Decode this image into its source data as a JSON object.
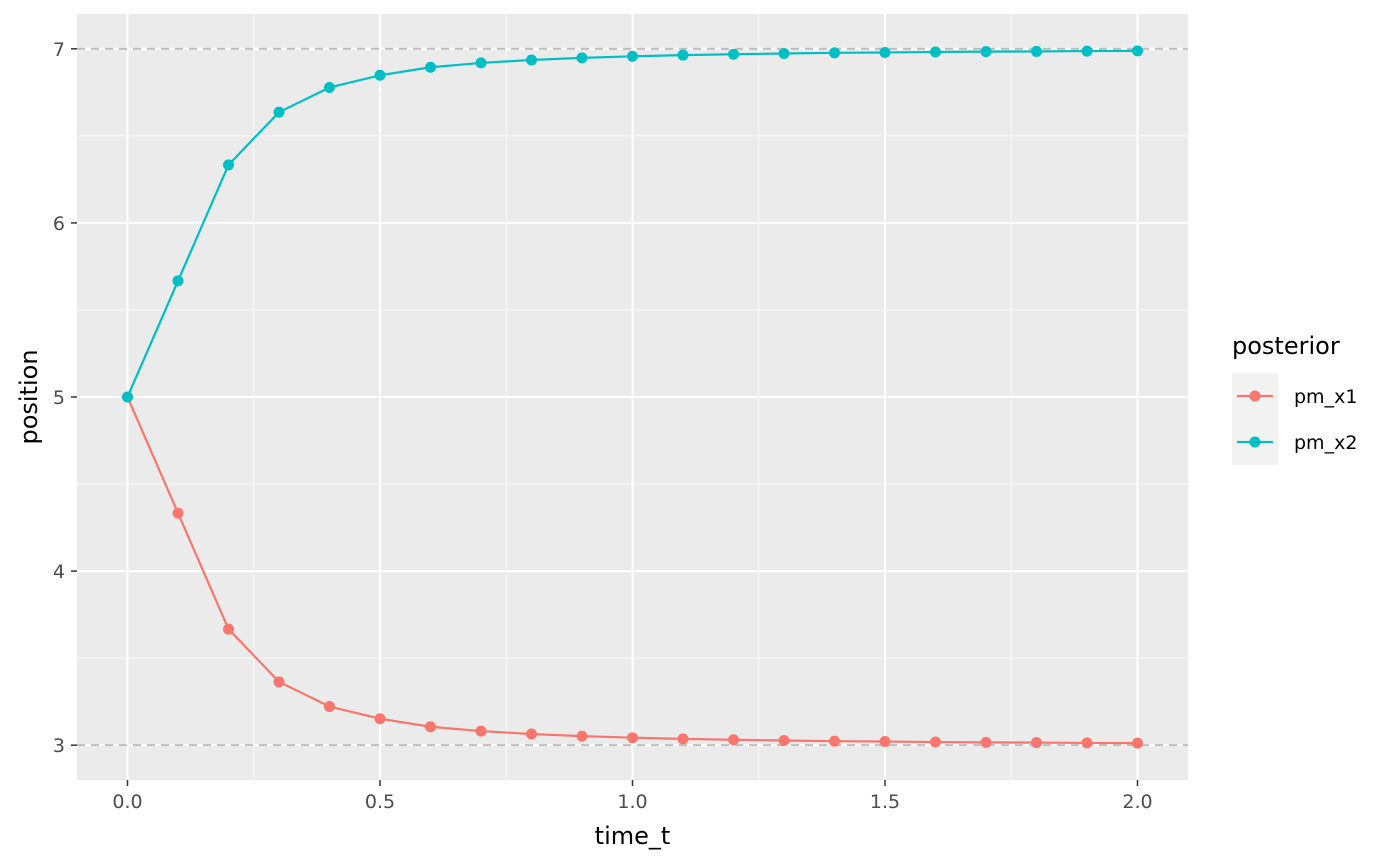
{
  "chart_data": {
    "type": "line",
    "xlabel": "time_t",
    "ylabel": "position",
    "xlim": [
      -0.1,
      2.1
    ],
    "ylim": [
      2.8,
      7.2
    ],
    "x_ticks": [
      0.0,
      0.5,
      1.0,
      1.5,
      2.0
    ],
    "x_tick_labels": [
      "0.0",
      "0.5",
      "1.0",
      "1.5",
      "2.0"
    ],
    "y_ticks": [
      3,
      4,
      5,
      6,
      7
    ],
    "y_tick_labels": [
      "3",
      "4",
      "5",
      "6",
      "7"
    ],
    "grid": true,
    "reference_lines": [
      3,
      7
    ],
    "legend": {
      "title": "posterior",
      "placement": "right"
    },
    "x": [
      0.0,
      0.1,
      0.2,
      0.3,
      0.4,
      0.5,
      0.6,
      0.7,
      0.8,
      0.9,
      1.0,
      1.1,
      1.2,
      1.3,
      1.4,
      1.5,
      1.6,
      1.7,
      1.8,
      1.9,
      2.0
    ],
    "series": [
      {
        "name": "pm_x1",
        "color": "#F8766D",
        "values": [
          5.0,
          4.333,
          3.667,
          3.364,
          3.222,
          3.152,
          3.106,
          3.081,
          3.064,
          3.052,
          3.043,
          3.036,
          3.031,
          3.027,
          3.023,
          3.021,
          3.018,
          3.016,
          3.015,
          3.013,
          3.012
        ]
      },
      {
        "name": "pm_x2",
        "color": "#00BFC4",
        "values": [
          5.0,
          5.667,
          6.333,
          6.636,
          6.778,
          6.848,
          6.894,
          6.919,
          6.936,
          6.948,
          6.957,
          6.964,
          6.969,
          6.973,
          6.977,
          6.979,
          6.982,
          6.984,
          6.985,
          6.987,
          6.988
        ]
      }
    ]
  },
  "colors": {
    "panel_background": "#EBEBEB",
    "grid_major": "#FFFFFF",
    "reference_line": "#BEBEBE"
  }
}
